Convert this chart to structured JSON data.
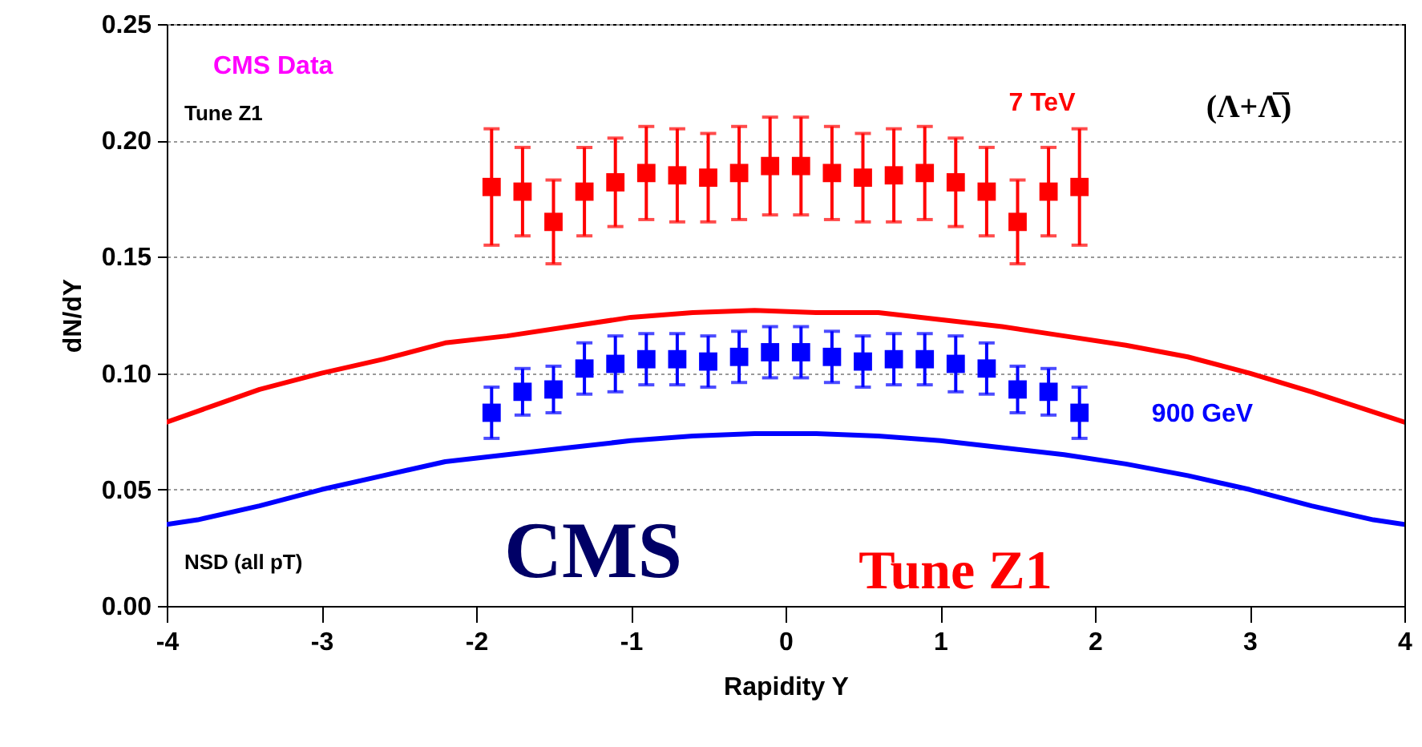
{
  "chart_data": {
    "type": "scatter",
    "xlabel": "Rapidity Y",
    "ylabel": "dN/dY",
    "xlim": [
      -4,
      4
    ],
    "xticks": [
      -4,
      -3,
      -2,
      -1,
      0,
      1,
      2,
      3,
      4
    ],
    "ylim": [
      0,
      0.25
    ],
    "yticks": [
      {
        "value": 0,
        "label": "0.00"
      },
      {
        "value": 0.05,
        "label": "0.05"
      },
      {
        "value": 0.1,
        "label": "0.10"
      },
      {
        "value": 0.15,
        "label": "0.15"
      },
      {
        "value": 0.2,
        "label": "0.20"
      },
      {
        "value": 0.25,
        "label": "0.25"
      }
    ],
    "grid": "y",
    "annotations": [
      "CMS Data",
      "Tune Z1",
      "NSD (all pT)",
      "(Λ+Λ̅)",
      "CMS",
      "Tune Z1"
    ],
    "series": [
      {
        "name": "7 TeV",
        "marker": "square",
        "color": "#ff0000",
        "x": [
          -1.9,
          -1.7,
          -1.5,
          -1.3,
          -1.1,
          -0.9,
          -0.7,
          -0.5,
          -0.3,
          -0.1,
          0.1,
          0.3,
          0.5,
          0.7,
          0.9,
          1.1,
          1.3,
          1.5,
          1.7,
          1.9
        ],
        "values": [
          0.18,
          0.178,
          0.165,
          0.178,
          0.182,
          0.186,
          0.185,
          0.184,
          0.186,
          0.189,
          0.189,
          0.186,
          0.184,
          0.185,
          0.186,
          0.182,
          0.178,
          0.165,
          0.178,
          0.18
        ],
        "errors": [
          0.025,
          0.019,
          0.018,
          0.019,
          0.019,
          0.02,
          0.02,
          0.019,
          0.02,
          0.021,
          0.021,
          0.02,
          0.019,
          0.02,
          0.02,
          0.019,
          0.019,
          0.018,
          0.019,
          0.025
        ]
      },
      {
        "name": "900 GeV",
        "marker": "square",
        "color": "#0000ff",
        "x": [
          -1.9,
          -1.7,
          -1.5,
          -1.3,
          -1.1,
          -0.9,
          -0.7,
          -0.5,
          -0.3,
          -0.1,
          0.1,
          0.3,
          0.5,
          0.7,
          0.9,
          1.1,
          1.3,
          1.5,
          1.7,
          1.9
        ],
        "values": [
          0.083,
          0.092,
          0.093,
          0.102,
          0.104,
          0.106,
          0.106,
          0.105,
          0.107,
          0.109,
          0.109,
          0.107,
          0.105,
          0.106,
          0.106,
          0.104,
          0.102,
          0.093,
          0.092,
          0.083
        ],
        "errors": [
          0.011,
          0.01,
          0.01,
          0.011,
          0.012,
          0.011,
          0.011,
          0.011,
          0.011,
          0.011,
          0.011,
          0.011,
          0.011,
          0.011,
          0.011,
          0.012,
          0.011,
          0.01,
          0.01,
          0.011
        ]
      },
      {
        "type": "line",
        "color": "#ff0000",
        "x": [
          -4,
          -3.4,
          -3,
          -2.6,
          -2.2,
          -1.8,
          -1.4,
          -1,
          -0.6,
          -0.2,
          0.2,
          0.6,
          1,
          1.4,
          1.8,
          2.2,
          2.6,
          3,
          3.4,
          4
        ],
        "values": [
          0.079,
          0.093,
          0.1,
          0.106,
          0.113,
          0.116,
          0.12,
          0.124,
          0.126,
          0.127,
          0.126,
          0.126,
          0.123,
          0.12,
          0.116,
          0.112,
          0.107,
          0.1,
          0.092,
          0.079
        ]
      },
      {
        "type": "line",
        "color": "#0000ff",
        "x": [
          -4,
          -3.8,
          -3.4,
          -3,
          -2.6,
          -2.2,
          -1.8,
          -1.4,
          -1,
          -0.6,
          -0.2,
          0.2,
          0.6,
          1,
          1.4,
          1.8,
          2.2,
          2.6,
          3,
          3.4,
          3.8,
          4
        ],
        "values": [
          0.035,
          0.037,
          0.043,
          0.05,
          0.056,
          0.062,
          0.065,
          0.068,
          0.071,
          0.073,
          0.074,
          0.074,
          0.073,
          0.071,
          0.068,
          0.065,
          0.061,
          0.056,
          0.05,
          0.043,
          0.037,
          0.035
        ]
      }
    ]
  }
}
